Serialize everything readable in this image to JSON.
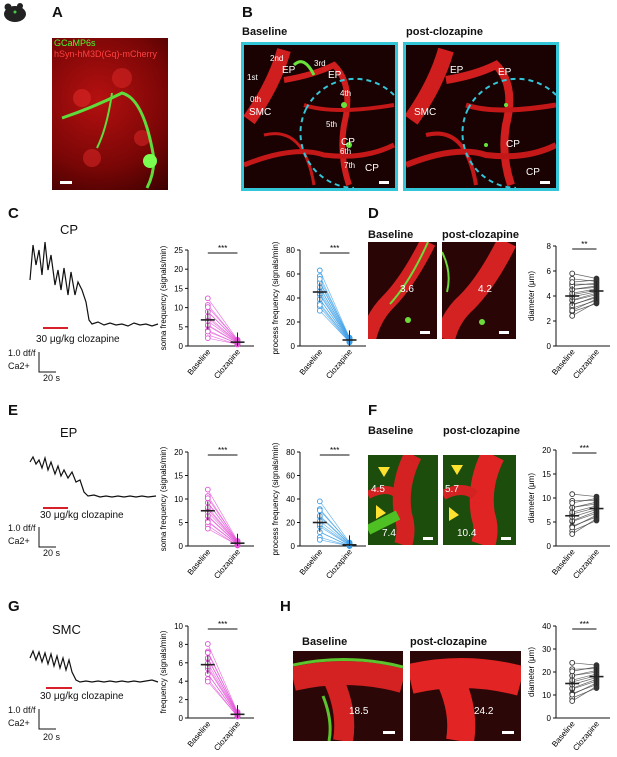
{
  "panels": {
    "A": {
      "letter": "A",
      "label_gcamp": "GCaMP6s",
      "label_hsyn": "hSyn-hM3D(Gq)-mCherry"
    },
    "B": {
      "letter": "B",
      "baseline": "Baseline",
      "post": "post-clozapine",
      "orders": [
        "0th",
        "1st",
        "2nd",
        "3rd",
        "4th",
        "5th",
        "6th",
        "7th"
      ],
      "labels_base": [
        "EP",
        "EP",
        "SMC",
        "CP",
        "CP"
      ],
      "labels_post": [
        "EP",
        "EP",
        "SMC",
        "CP",
        "CP"
      ]
    },
    "C": {
      "letter": "C",
      "title": "CP",
      "stim": "30 μg/kg clozapine",
      "scale_y": "1.0 df/f",
      "scale_unit": "Ca2+",
      "scale_x": "20 s"
    },
    "D": {
      "letter": "D",
      "baseline": "Baseline",
      "post": "post-clozapine",
      "val_base": "3.6",
      "val_post": "4.2"
    },
    "E": {
      "letter": "E",
      "title": "EP",
      "stim": "30 μg/kg clozapine",
      "scale_y": "1.0 df/f",
      "scale_unit": "Ca2+",
      "scale_x": "20 s"
    },
    "F": {
      "letter": "F",
      "baseline": "Baseline",
      "post": "post-clozapine",
      "vals_base": [
        "4.5",
        "7.4"
      ],
      "vals_post": [
        "5.7",
        "10.4"
      ]
    },
    "G": {
      "letter": "G",
      "title": "SMC",
      "stim": "30 μg/kg clozapine",
      "scale_y": "1.0 df/f",
      "scale_unit": "Ca2+",
      "scale_x": "20 s"
    },
    "H": {
      "letter": "H",
      "baseline": "Baseline",
      "post": "post-clozapine",
      "val_base": "18.5",
      "val_post": "24.2"
    }
  },
  "colors": {
    "magenta": "#e24fd6",
    "blue": "#3b9ee6",
    "stim": "#d8202a",
    "cyan": "#33c6d8",
    "dark": "#333333"
  },
  "chart_data": [
    {
      "id": "C-soma",
      "type": "scatter",
      "ylabel": "soma frequency (signals/min)",
      "categories": [
        "Baseline",
        "Clozapine"
      ],
      "ylim": [
        0,
        25
      ],
      "yticks": [
        0,
        5,
        10,
        15,
        20,
        25
      ],
      "sig": "***",
      "series": [
        {
          "values": [
            6.8,
            1.0
          ]
        }
      ]
    },
    {
      "id": "C-process",
      "type": "scatter",
      "ylabel": "process frequency (signals/min)",
      "categories": [
        "Baseline",
        "Clozapine"
      ],
      "ylim": [
        0,
        80
      ],
      "yticks": [
        0,
        20,
        40,
        60,
        80
      ],
      "sig": "***",
      "series": [
        {
          "values": [
            45,
            5
          ]
        }
      ]
    },
    {
      "id": "D-diam",
      "type": "scatter",
      "ylabel": "diameter (μm)",
      "categories": [
        "Baseline",
        "Clozapine"
      ],
      "ylim": [
        0,
        8
      ],
      "yticks": [
        0,
        2,
        4,
        6,
        8
      ],
      "sig": "**",
      "series": [
        {
          "values": [
            4.0,
            4.4
          ]
        }
      ]
    },
    {
      "id": "E-soma",
      "type": "scatter",
      "ylabel": "soma frequency (signals/min)",
      "categories": [
        "Baseline",
        "Clozapine"
      ],
      "ylim": [
        0,
        20
      ],
      "yticks": [
        0,
        5,
        10,
        15,
        20
      ],
      "sig": "***",
      "series": [
        {
          "values": [
            7.5,
            0.6
          ]
        }
      ]
    },
    {
      "id": "E-process",
      "type": "scatter",
      "ylabel": "process frequency (signals/min)",
      "categories": [
        "Baseline",
        "Clozapine"
      ],
      "ylim": [
        0,
        80
      ],
      "yticks": [
        0,
        20,
        40,
        60,
        80
      ],
      "sig": "***",
      "series": [
        {
          "values": [
            20,
            1
          ]
        }
      ]
    },
    {
      "id": "F-diam",
      "type": "scatter",
      "ylabel": "diameter (μm)",
      "categories": [
        "Baseline",
        "Clozapine"
      ],
      "ylim": [
        0,
        20
      ],
      "yticks": [
        0,
        5,
        10,
        15,
        20
      ],
      "sig": "***",
      "series": [
        {
          "values": [
            6.3,
            7.8
          ]
        }
      ]
    },
    {
      "id": "G-freq",
      "type": "scatter",
      "ylabel": "frequency (signals/min)",
      "categories": [
        "Baseline",
        "Clozapine"
      ],
      "ylim": [
        0,
        10
      ],
      "yticks": [
        0,
        2,
        4,
        6,
        8,
        10
      ],
      "sig": "***",
      "series": [
        {
          "values": [
            5.8,
            0.4
          ]
        }
      ]
    },
    {
      "id": "H-diam",
      "type": "scatter",
      "ylabel": "diameter (μm)",
      "categories": [
        "Baseline",
        "Clozapine"
      ],
      "ylim": [
        0,
        40
      ],
      "yticks": [
        0,
        10,
        20,
        30,
        40
      ],
      "sig": "***",
      "series": [
        {
          "values": [
            15,
            18
          ]
        }
      ]
    }
  ]
}
